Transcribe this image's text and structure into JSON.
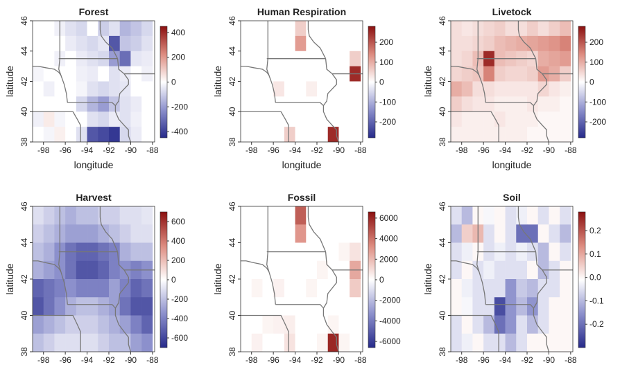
{
  "chart_data": [
    {
      "type": "heatmap",
      "title": "Forest",
      "xlabel": "longitude",
      "ylabel": "latitude",
      "x": [
        -98.5,
        -97.5,
        -96.5,
        -95.5,
        -94.5,
        -93.5,
        -92.5,
        -91.5,
        -90.5,
        -89.5,
        -88.5
      ],
      "y": [
        45.5,
        44.5,
        43.5,
        42.5,
        41.5,
        40.5,
        39.5,
        38.5
      ],
      "xlim": [
        -99,
        -87.8
      ],
      "ylim": [
        38,
        46
      ],
      "xticks": [
        -98,
        -96,
        -94,
        -92,
        -90,
        -88
      ],
      "yticks": [
        38,
        40,
        42,
        44,
        46
      ],
      "clim": [
        -450,
        450
      ],
      "cticks": [
        -400,
        -200,
        0,
        200,
        400
      ],
      "z": [
        [
          0,
          0,
          -30,
          -60,
          -80,
          0,
          -100,
          -60,
          -150,
          -120,
          -80
        ],
        [
          0,
          0,
          0,
          -40,
          -60,
          -80,
          -50,
          -350,
          -120,
          -100,
          -60
        ],
        [
          0,
          0,
          -30,
          0,
          -40,
          -60,
          -80,
          -200,
          -300,
          -50,
          -40
        ],
        [
          -20,
          0,
          0,
          0,
          -30,
          -40,
          0,
          -60,
          -40,
          0,
          -30
        ],
        [
          0,
          -30,
          0,
          0,
          -20,
          -60,
          -80,
          -60,
          -50,
          0,
          0
        ],
        [
          0,
          0,
          0,
          0,
          -80,
          -150,
          -200,
          -120,
          -60,
          -40,
          0
        ],
        [
          -30,
          40,
          -20,
          0,
          0,
          -60,
          -80,
          -40,
          -60,
          -30,
          0
        ],
        [
          0,
          -20,
          30,
          0,
          -60,
          -350,
          -380,
          -420,
          -80,
          -40,
          0
        ]
      ]
    },
    {
      "type": "heatmap",
      "title": "Human Respiration",
      "xlabel": "longitude",
      "ylabel": "latitude",
      "x": [
        -98.5,
        -97.5,
        -96.5,
        -95.5,
        -94.5,
        -93.5,
        -92.5,
        -91.5,
        -90.5,
        -89.5,
        -88.5
      ],
      "y": [
        45.5,
        44.5,
        43.5,
        42.5,
        41.5,
        40.5,
        39.5,
        38.5
      ],
      "xlim": [
        -99,
        -87.8
      ],
      "ylim": [
        38,
        46
      ],
      "xticks": [
        -98,
        -96,
        -94,
        -92,
        -90,
        -88
      ],
      "yticks": [
        38,
        40,
        42,
        44,
        46
      ],
      "clim": [
        -280,
        280
      ],
      "cticks": [
        -200,
        -100,
        0,
        100,
        200
      ],
      "z": [
        [
          0,
          0,
          0,
          0,
          0,
          60,
          0,
          0,
          0,
          0,
          0
        ],
        [
          0,
          0,
          0,
          0,
          0,
          120,
          0,
          0,
          0,
          0,
          0
        ],
        [
          0,
          0,
          0,
          0,
          0,
          0,
          0,
          0,
          0,
          0,
          60
        ],
        [
          0,
          0,
          0,
          0,
          0,
          0,
          0,
          0,
          0,
          0,
          250
        ],
        [
          0,
          0,
          0,
          30,
          0,
          0,
          20,
          0,
          0,
          0,
          0
        ],
        [
          0,
          0,
          0,
          0,
          0,
          0,
          0,
          0,
          0,
          0,
          0
        ],
        [
          0,
          0,
          0,
          0,
          0,
          0,
          0,
          0,
          0,
          0,
          0
        ],
        [
          0,
          0,
          0,
          0,
          60,
          0,
          0,
          0,
          250,
          0,
          0
        ]
      ]
    },
    {
      "type": "heatmap",
      "title": "Livetock",
      "xlabel": "longitude",
      "ylabel": "latitude",
      "x": [
        -98.5,
        -97.5,
        -96.5,
        -95.5,
        -94.5,
        -93.5,
        -92.5,
        -91.5,
        -90.5,
        -89.5,
        -88.5
      ],
      "y": [
        45.5,
        44.5,
        43.5,
        42.5,
        41.5,
        40.5,
        39.5,
        38.5
      ],
      "xlim": [
        -99,
        -87.8
      ],
      "ylim": [
        38,
        46
      ],
      "xticks": [
        -98,
        -96,
        -94,
        -92,
        -90,
        -88
      ],
      "yticks": [
        38,
        40,
        42,
        44,
        46
      ],
      "clim": [
        -280,
        280
      ],
      "cticks": [
        -200,
        -100,
        0,
        100,
        200
      ],
      "z": [
        [
          40,
          30,
          40,
          50,
          60,
          40,
          40,
          60,
          40,
          60,
          80
        ],
        [
          40,
          40,
          50,
          60,
          80,
          90,
          100,
          110,
          120,
          130,
          150
        ],
        [
          40,
          50,
          80,
          250,
          80,
          70,
          60,
          50,
          100,
          110,
          120
        ],
        [
          50,
          60,
          70,
          150,
          60,
          50,
          50,
          60,
          120,
          100,
          60
        ],
        [
          100,
          80,
          40,
          40,
          30,
          30,
          30,
          30,
          50,
          30,
          20
        ],
        [
          60,
          40,
          30,
          30,
          20,
          20,
          20,
          30,
          20,
          20,
          10
        ],
        [
          30,
          20,
          20,
          20,
          30,
          20,
          20,
          20,
          10,
          10,
          10
        ],
        [
          20,
          20,
          20,
          20,
          20,
          20,
          20,
          10,
          10,
          10,
          10
        ]
      ]
    },
    {
      "type": "heatmap",
      "title": "Harvest",
      "xlabel": "longitude",
      "ylabel": "latitude",
      "x": [
        -98.5,
        -97.5,
        -96.5,
        -95.5,
        -94.5,
        -93.5,
        -92.5,
        -91.5,
        -90.5,
        -89.5,
        -88.5
      ],
      "y": [
        45.5,
        44.5,
        43.5,
        42.5,
        41.5,
        40.5,
        39.5,
        38.5
      ],
      "xlim": [
        -99,
        -87.8
      ],
      "ylim": [
        38,
        46
      ],
      "xticks": [
        -98,
        -96,
        -94,
        -92,
        -90,
        -88
      ],
      "yticks": [
        38,
        40,
        42,
        44,
        46
      ],
      "clim": [
        -700,
        700
      ],
      "cticks": [
        -600,
        -400,
        -200,
        0,
        200,
        400,
        600
      ],
      "z": [
        [
          -100,
          -150,
          -200,
          -250,
          -200,
          -200,
          -150,
          -150,
          -100,
          -100,
          -80
        ],
        [
          -150,
          -200,
          -250,
          -300,
          -300,
          -300,
          -250,
          -200,
          -150,
          -100,
          -100
        ],
        [
          -200,
          -250,
          -350,
          -450,
          -500,
          -500,
          -450,
          -400,
          -250,
          -200,
          -200
        ],
        [
          -250,
          -300,
          -350,
          -450,
          -550,
          -550,
          -500,
          -400,
          -350,
          -400,
          -350
        ],
        [
          -500,
          -450,
          -400,
          -350,
          -400,
          -400,
          -400,
          -300,
          -400,
          -500,
          -450
        ],
        [
          -550,
          -450,
          -350,
          -250,
          -200,
          -200,
          -250,
          -300,
          -450,
          -550,
          -550
        ],
        [
          -300,
          -250,
          -200,
          -150,
          -150,
          -150,
          -200,
          -250,
          -300,
          -400,
          -500
        ],
        [
          -200,
          -150,
          -100,
          -100,
          -100,
          -100,
          -150,
          -200,
          -200,
          -300,
          -350
        ]
      ]
    },
    {
      "type": "heatmap",
      "title": "Fossil",
      "xlabel": "longitude",
      "ylabel": "latitude",
      "x": [
        -98.5,
        -97.5,
        -96.5,
        -95.5,
        -94.5,
        -93.5,
        -92.5,
        -91.5,
        -90.5,
        -89.5,
        -88.5
      ],
      "y": [
        45.5,
        44.5,
        43.5,
        42.5,
        41.5,
        40.5,
        39.5,
        38.5
      ],
      "xlim": [
        -99,
        -87.8
      ],
      "ylim": [
        38,
        46
      ],
      "xticks": [
        -98,
        -96,
        -94,
        -92,
        -90,
        -88
      ],
      "yticks": [
        38,
        40,
        42,
        44,
        46
      ],
      "clim": [
        -6600,
        6600
      ],
      "cticks": [
        -6000,
        -4000,
        -2000,
        0,
        2000,
        4000,
        6000
      ],
      "z": [
        [
          0,
          0,
          0,
          0,
          0,
          4500,
          0,
          0,
          0,
          0,
          0
        ],
        [
          0,
          0,
          0,
          0,
          0,
          3000,
          0,
          0,
          0,
          0,
          0
        ],
        [
          0,
          0,
          0,
          0,
          0,
          0,
          0,
          0,
          0,
          300,
          800
        ],
        [
          0,
          0,
          0,
          0,
          0,
          0,
          0,
          300,
          0,
          0,
          2500
        ],
        [
          0,
          300,
          0,
          400,
          0,
          0,
          300,
          0,
          0,
          0,
          1500
        ],
        [
          0,
          0,
          0,
          0,
          0,
          0,
          0,
          0,
          0,
          0,
          0
        ],
        [
          0,
          0,
          300,
          400,
          500,
          0,
          0,
          0,
          300,
          0,
          0
        ],
        [
          0,
          400,
          0,
          0,
          800,
          0,
          0,
          300,
          6000,
          300,
          0
        ]
      ]
    },
    {
      "type": "heatmap",
      "title": "Soil",
      "xlabel": "longitude",
      "ylabel": "latitude",
      "x": [
        -98.5,
        -97.5,
        -96.5,
        -95.5,
        -94.5,
        -93.5,
        -92.5,
        -91.5,
        -90.5,
        -89.5,
        -88.5
      ],
      "y": [
        45.5,
        44.5,
        43.5,
        42.5,
        41.5,
        40.5,
        39.5,
        38.5
      ],
      "xlim": [
        -99,
        -87.8
      ],
      "ylim": [
        38,
        46
      ],
      "xticks": [
        -98,
        -96,
        -94,
        -92,
        -90,
        -88
      ],
      "yticks": [
        38,
        40,
        42,
        44,
        46
      ],
      "clim": [
        -0.3,
        0.28
      ],
      "cticks": [
        -0.2,
        -0.1,
        {
          "value": 0,
          "label": "0.0"
        },
        0.1,
        0.2
      ],
      "z": [
        [
          -0.05,
          -0.1,
          0,
          -0.02,
          0,
          -0.05,
          -0.03,
          0,
          -0.05,
          0,
          -0.05
        ],
        [
          -0.1,
          0.05,
          0.08,
          -0.05,
          0,
          -0.05,
          -0.2,
          -0.2,
          0,
          -0.05,
          -0.1
        ],
        [
          -0.05,
          -0.03,
          0,
          -0.05,
          -0.03,
          -0.05,
          -0.03,
          -0.05,
          -0.1,
          0,
          -0.05
        ],
        [
          -0.05,
          0,
          -0.05,
          -0.03,
          -0.05,
          -0.05,
          -0.05,
          0,
          -0.1,
          -0.05,
          0
        ],
        [
          0,
          -0.03,
          -0.05,
          -0.05,
          -0.05,
          -0.15,
          -0.08,
          -0.1,
          -0.05,
          -0.05,
          0
        ],
        [
          0,
          -0.02,
          -0.05,
          -0.05,
          -0.25,
          -0.15,
          -0.1,
          -0.15,
          -0.05,
          0,
          0
        ],
        [
          -0.05,
          0,
          -0.05,
          -0.1,
          -0.2,
          -0.15,
          -0.05,
          -0.1,
          -0.05,
          0,
          0
        ],
        [
          -0.05,
          -0.03,
          0,
          -0.05,
          -0.05,
          -0.1,
          -0.05,
          0,
          0,
          0,
          0
        ]
      ]
    }
  ]
}
